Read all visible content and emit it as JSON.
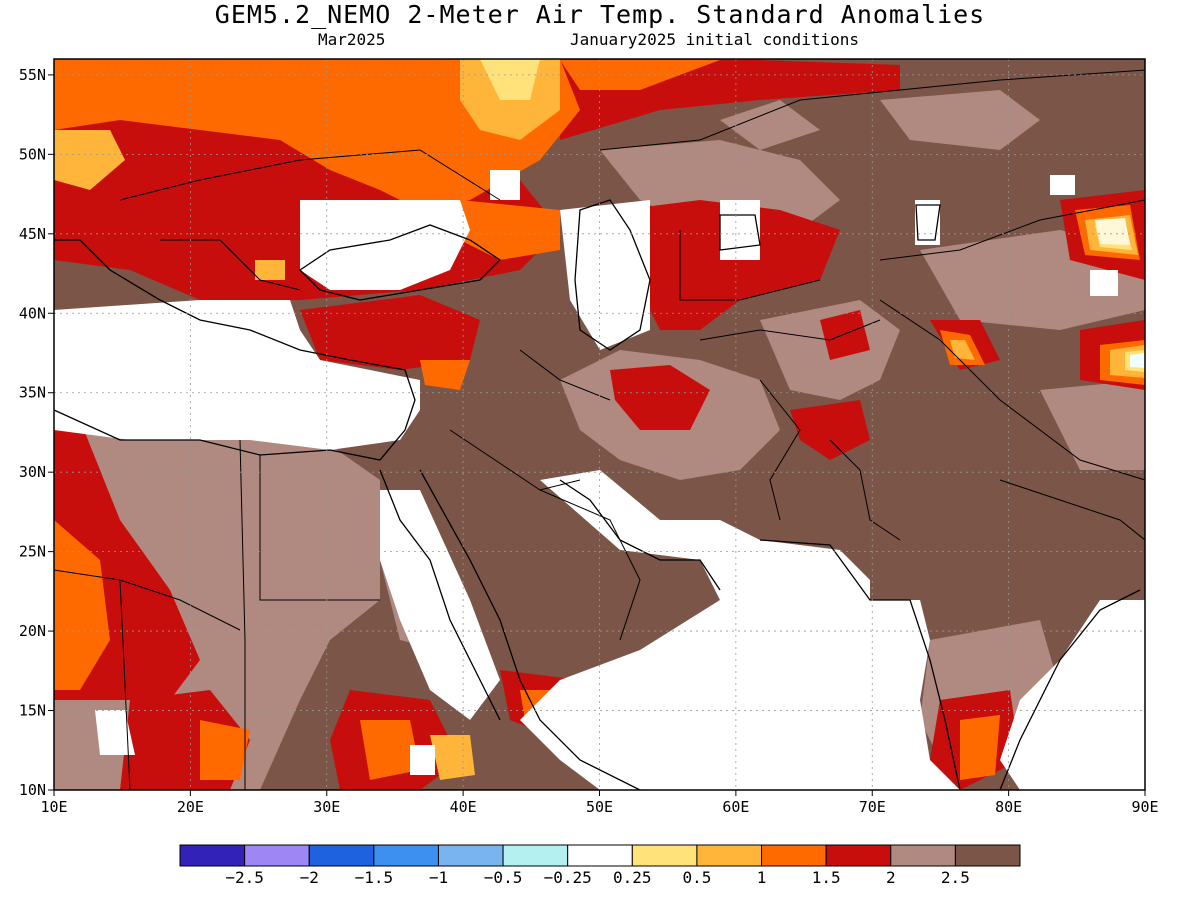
{
  "header": {
    "title": "GEM5.2_NEMO 2-Meter Air Temp. Standard Anomalies",
    "month": "Mar2025",
    "init": "January2025 initial conditions"
  },
  "axes": {
    "lat_labels": [
      "10N",
      "15N",
      "20N",
      "25N",
      "30N",
      "35N",
      "40N",
      "45N",
      "50N",
      "55N"
    ],
    "lon_labels": [
      "10E",
      "20E",
      "30E",
      "40E",
      "50E",
      "60E",
      "70E",
      "80E",
      "90E"
    ],
    "lat_values": [
      10,
      15,
      20,
      25,
      30,
      35,
      40,
      45,
      50,
      55
    ],
    "lon_values": [
      10,
      20,
      30,
      40,
      50,
      60,
      70,
      80,
      90
    ],
    "lat_range": [
      10,
      56
    ],
    "lon_range": [
      10,
      90
    ]
  },
  "colorbar": {
    "colors": [
      "#3322b8",
      "#9f86f5",
      "#1f62e0",
      "#3d8ff0",
      "#79b4f0",
      "#b4f0f0",
      "#ffffff",
      "#ffe27a",
      "#ffb53a",
      "#ff6a00",
      "#c80d0d",
      "#b08a80",
      "#7a5548"
    ],
    "labels": [
      "-2.5",
      "-2",
      "-1.5",
      "-1",
      "-0.5",
      "-0.25",
      "0.25",
      "0.5",
      "1",
      "1.5",
      "2",
      "2.5"
    ]
  },
  "legend_classes": {
    "high": "#7a5548",
    "mid_high": "#b08a80",
    "red": "#c80d0d",
    "orange": "#ff6a00",
    "light_orange": "#ffb53a",
    "yellow": "#ffe27a",
    "neutral": "#ffffff"
  }
}
